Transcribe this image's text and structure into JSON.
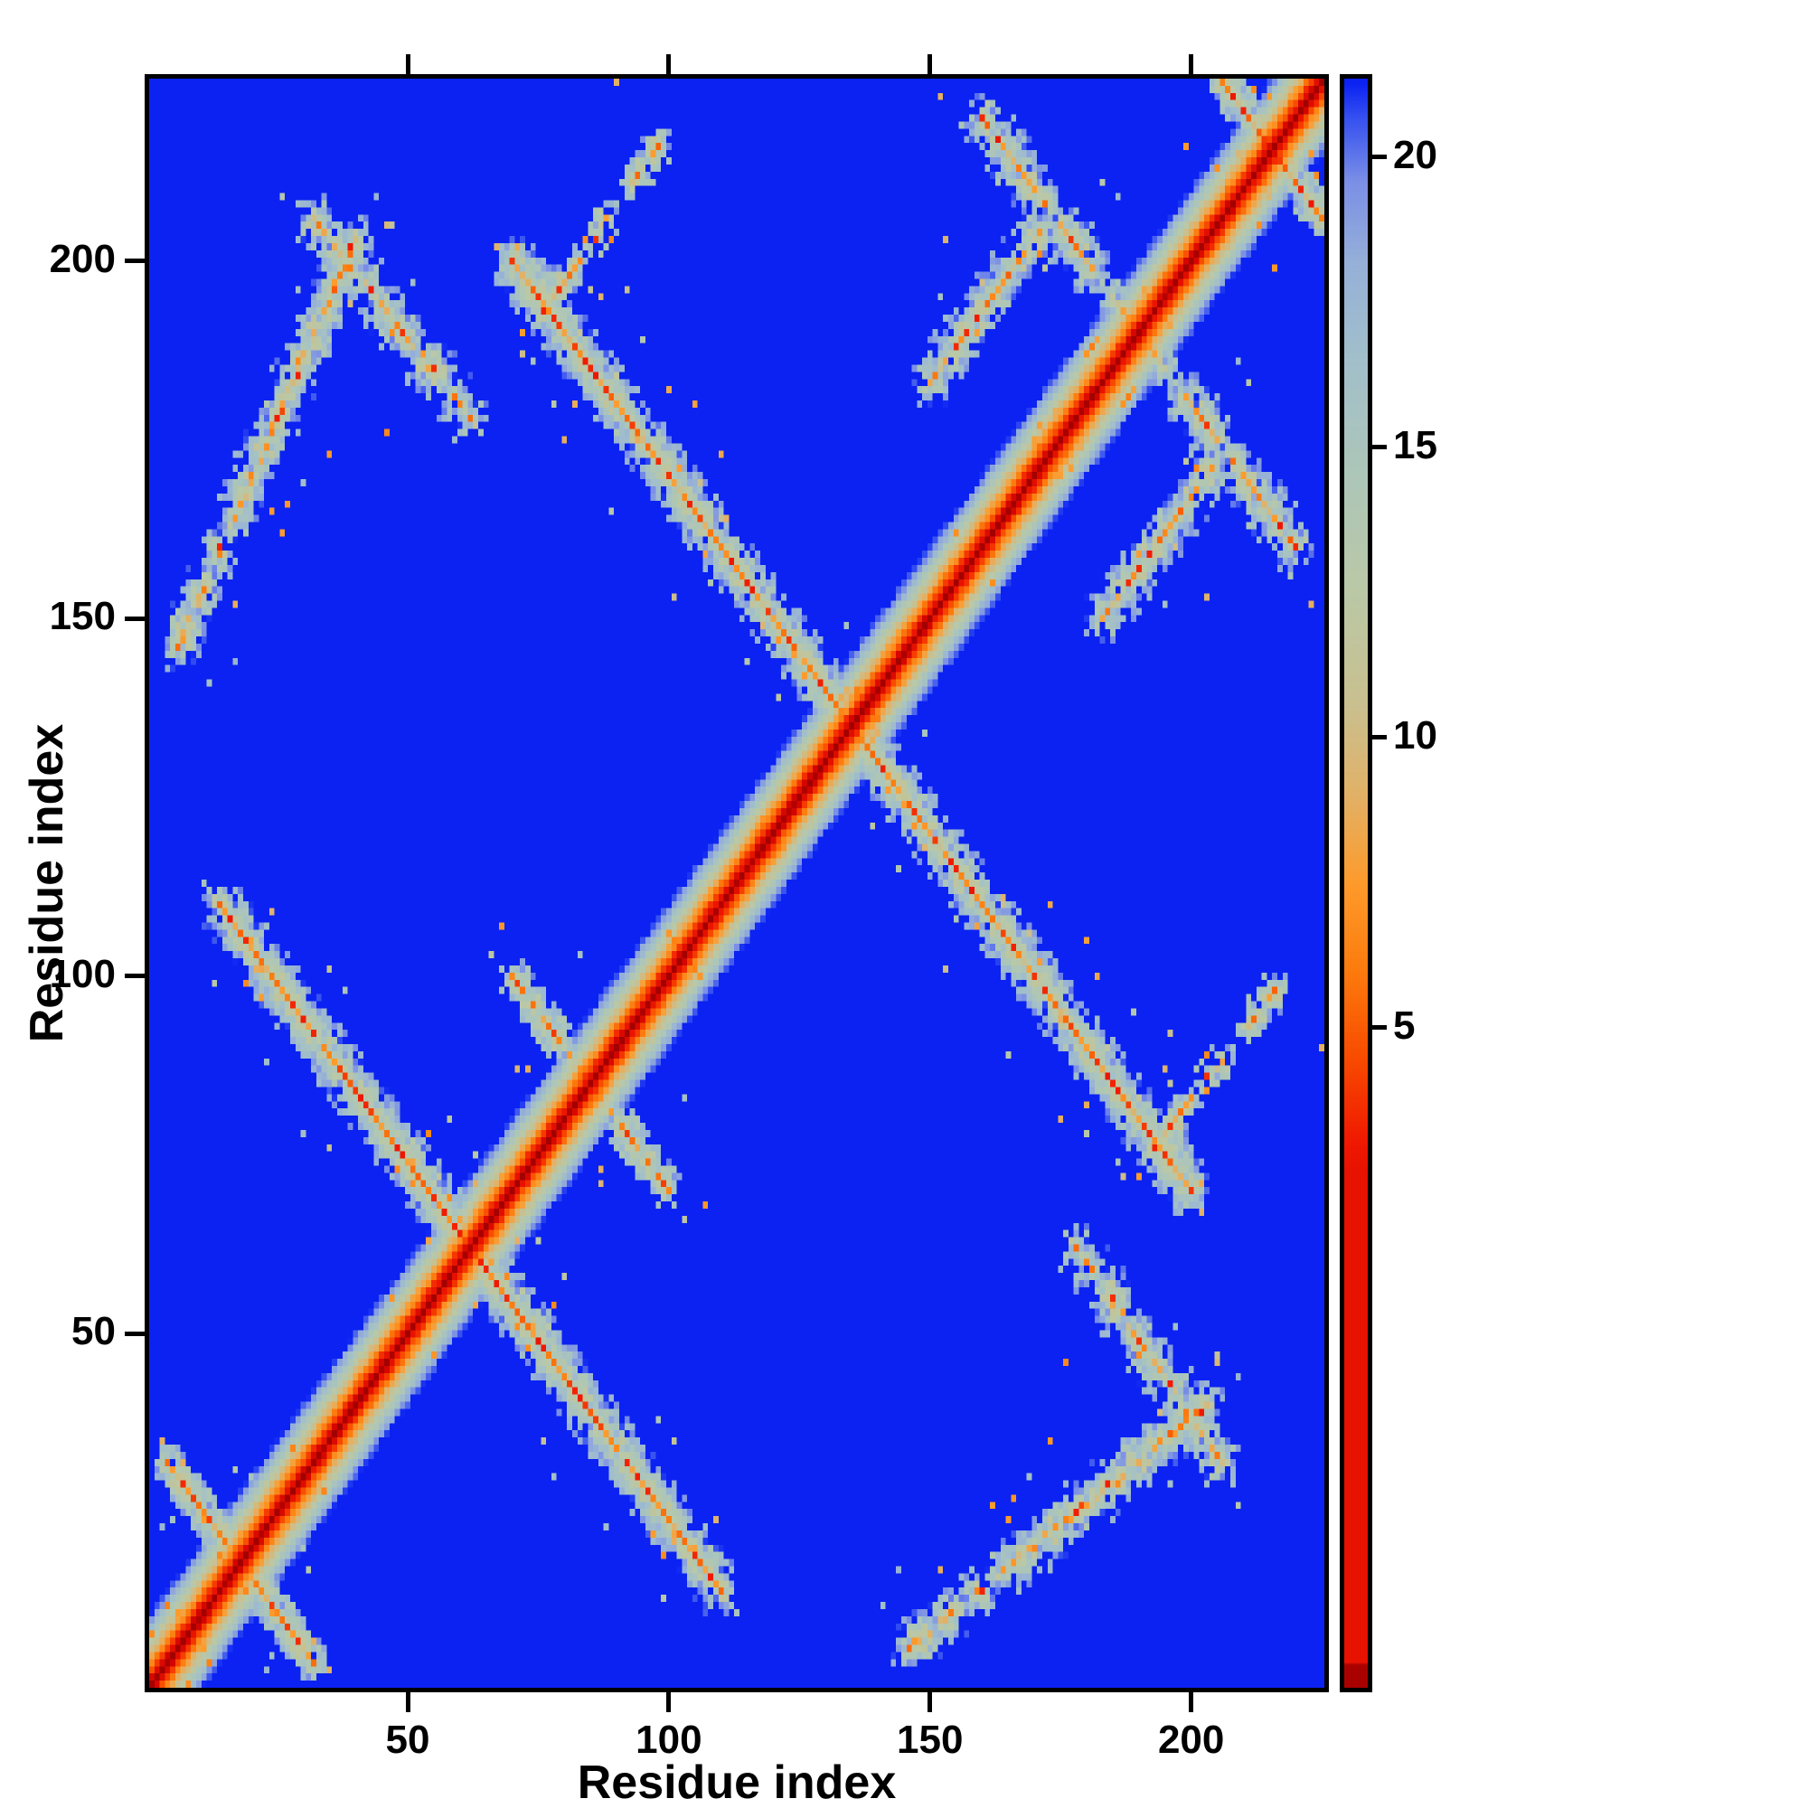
{
  "figure": {
    "background_color": "#ffffff",
    "frame_color": "#000000",
    "x_axis": {
      "label": "Residue index",
      "ticks": [
        50,
        100,
        150,
        200
      ]
    },
    "y_axis": {
      "label": "Residue index",
      "ticks": [
        50,
        100,
        150,
        200
      ]
    },
    "colorbar_axis": {
      "ticks": [
        20,
        15,
        10,
        5
      ]
    }
  },
  "chart_data": {
    "type": "heatmap",
    "title": "",
    "xlabel": "Residue index",
    "ylabel": "Residue index",
    "x_range": [
      1,
      225
    ],
    "y_range": [
      1,
      225
    ],
    "n_residues": 225,
    "background_value": 22,
    "symmetric": true,
    "grid": false,
    "legend": "colorbar-right",
    "diagonal_band": {
      "half_width": 10,
      "slope": 2.1
    },
    "contact_segments": [
      {
        "from": [
          14,
          110
        ],
        "to": [
          110,
          14
        ],
        "width": 3,
        "density": 0.82
      },
      {
        "from": [
          70,
          200
        ],
        "to": [
          200,
          70
        ],
        "width": 3,
        "density": 0.82
      },
      {
        "from": [
          70,
          100
        ],
        "to": [
          100,
          70
        ],
        "width": 2,
        "density": 0.55
      },
      {
        "from": [
          4,
          32
        ],
        "to": [
          32,
          4
        ],
        "width": 2,
        "density": 0.75
      },
      {
        "from": [
          6,
          146
        ],
        "to": [
          40,
          203
        ],
        "width": 3,
        "density": 0.7
      },
      {
        "from": [
          32,
          206
        ],
        "to": [
          62,
          178
        ],
        "width": 3,
        "density": 0.7
      },
      {
        "from": [
          76,
          193
        ],
        "to": [
          98,
          216
        ],
        "width": 2,
        "density": 0.55
      },
      {
        "from": [
          150,
          183
        ],
        "to": [
          176,
          209
        ],
        "width": 3,
        "density": 0.65
      },
      {
        "from": [
          160,
          220
        ],
        "to": [
          206,
          174
        ],
        "width": 3,
        "density": 0.72
      },
      {
        "from": [
          206,
          225
        ],
        "to": [
          225,
          206
        ],
        "width": 2,
        "density": 0.7
      }
    ],
    "colormap_stops": [
      [
        0,
        "#9a0000"
      ],
      [
        1.5,
        "#d40500"
      ],
      [
        3,
        "#f01800"
      ],
      [
        4.5,
        "#f84c00"
      ],
      [
        6,
        "#fc7c0e"
      ],
      [
        7.5,
        "#fd9b2c"
      ],
      [
        9,
        "#e2b166"
      ],
      [
        10.5,
        "#cabf8e"
      ],
      [
        12.5,
        "#bac8a6"
      ],
      [
        14.5,
        "#adc6b8"
      ],
      [
        16.5,
        "#a2bfca"
      ],
      [
        18.2,
        "#96b0d8"
      ],
      [
        19.6,
        "#7b8fe6"
      ],
      [
        20.7,
        "#3550f0"
      ],
      [
        21.3,
        "#0b22f2"
      ],
      [
        22,
        "#0b22f2"
      ]
    ],
    "colorbar": {
      "ticks": [
        5,
        10,
        15,
        20
      ],
      "vmax": 21.35,
      "solid_red_below_fraction": 0.77
    }
  }
}
